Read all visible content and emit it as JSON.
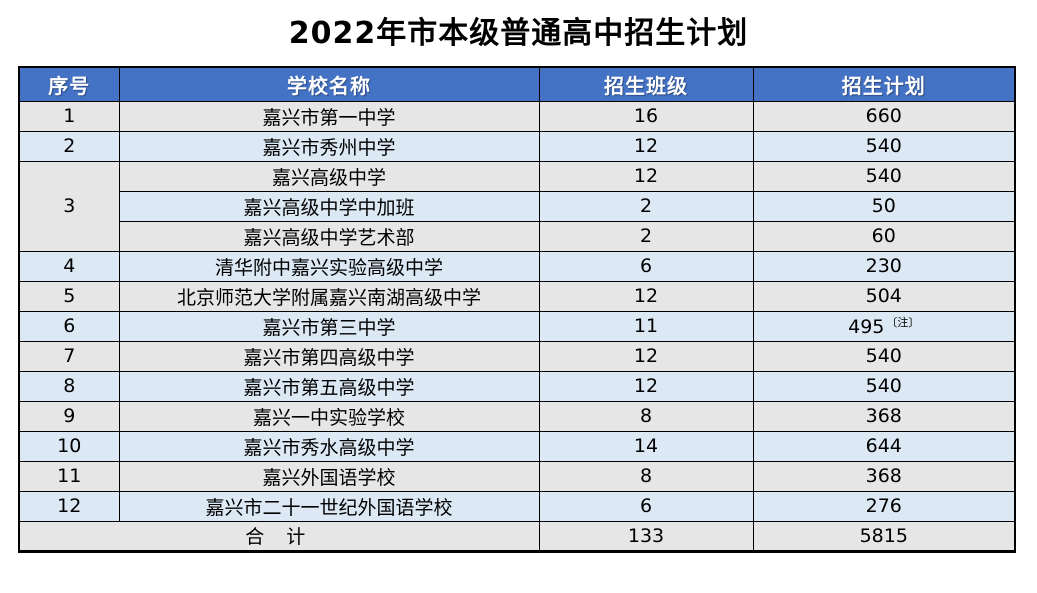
{
  "title": "2022年市本级普通高中招生计划",
  "colors": {
    "header_bg": "#4472C4",
    "header_text": "#FFFFFF",
    "row_band_gray": "#E7E6E6",
    "row_band_blue": "#DCE9F5",
    "border": "#000000"
  },
  "table": {
    "headers": [
      "序号",
      "学校名称",
      "招生班级",
      "招生计划"
    ],
    "rows": [
      {
        "no": "1",
        "school": "嘉兴市第一中学",
        "classes": "16",
        "plan": "660"
      },
      {
        "no": "2",
        "school": "嘉兴市秀州中学",
        "classes": "12",
        "plan": "540"
      },
      {
        "no": "3",
        "school": "嘉兴高级中学",
        "classes": "12",
        "plan": "540"
      },
      {
        "no": "3",
        "school": "嘉兴高级中学中加班",
        "classes": "2",
        "plan": "50"
      },
      {
        "no": "3",
        "school": "嘉兴高级中学艺术部",
        "classes": "2",
        "plan": "60"
      },
      {
        "no": "4",
        "school": "清华附中嘉兴实验高级中学",
        "classes": "6",
        "plan": "230"
      },
      {
        "no": "5",
        "school": "北京师范大学附属嘉兴南湖高级中学",
        "classes": "12",
        "plan": "504"
      },
      {
        "no": "6",
        "school": "嘉兴市第三中学",
        "classes": "11",
        "plan": "495",
        "note": "〔注〕"
      },
      {
        "no": "7",
        "school": "嘉兴市第四高级中学",
        "classes": "12",
        "plan": "540"
      },
      {
        "no": "8",
        "school": "嘉兴市第五高级中学",
        "classes": "12",
        "plan": "540"
      },
      {
        "no": "9",
        "school": "嘉兴一中实验学校",
        "classes": "8",
        "plan": "368"
      },
      {
        "no": "10",
        "school": "嘉兴市秀水高级中学",
        "classes": "14",
        "plan": "644"
      },
      {
        "no": "11",
        "school": "嘉兴外国语学校",
        "classes": "8",
        "plan": "368"
      },
      {
        "no": "12",
        "school": "嘉兴市二十一世纪外国语学校",
        "classes": "6",
        "plan": "276"
      }
    ],
    "total": {
      "label": "合 计",
      "classes": "133",
      "plan": "5815"
    }
  }
}
